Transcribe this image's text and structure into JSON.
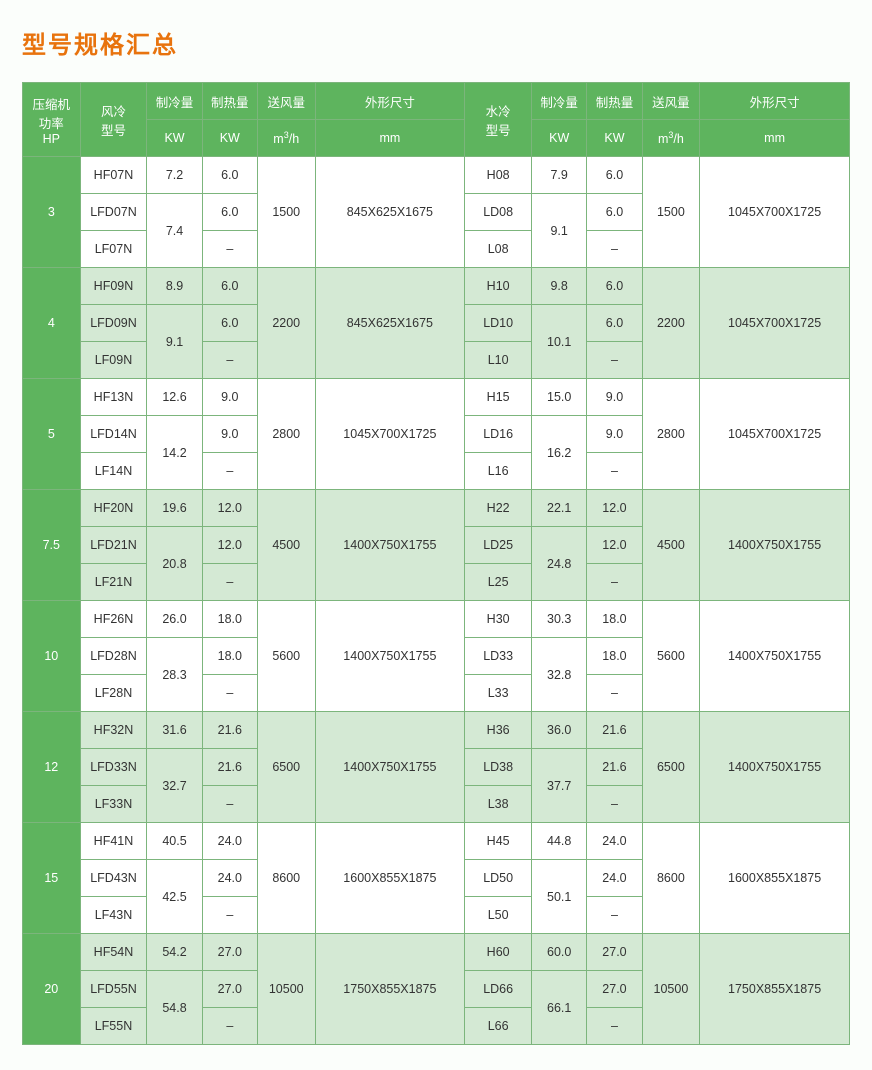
{
  "title": "型号规格汇总",
  "headers": {
    "hp_line1": "压缩机",
    "hp_line2": "功率",
    "hp_line3": "HP",
    "air_model_l1": "风冷",
    "air_model_l2": "型号",
    "water_model_l1": "水冷",
    "water_model_l2": "型号",
    "cooling": "制冷量",
    "heating": "制热量",
    "airflow": "送风量",
    "dims": "外形尺寸",
    "kw": "KW",
    "m3h_pre": "m",
    "m3h_sup": "3",
    "m3h_post": "/h",
    "mm": "mm"
  },
  "groups": [
    {
      "hp": "3",
      "shade": false,
      "air_models": [
        "HF07N",
        "LFD07N",
        "LF07N"
      ],
      "air_cool": [
        "7.2",
        "7.4"
      ],
      "air_heat": [
        "6.0",
        "6.0",
        "–"
      ],
      "air_flow": "1500",
      "air_dim": "845X625X1675",
      "water_models": [
        "H08",
        "LD08",
        "L08"
      ],
      "water_cool": [
        "7.9",
        "9.1"
      ],
      "water_heat": [
        "6.0",
        "6.0",
        "–"
      ],
      "water_flow": "1500",
      "water_dim": "1045X700X1725"
    },
    {
      "hp": "4",
      "shade": true,
      "air_models": [
        "HF09N",
        "LFD09N",
        "LF09N"
      ],
      "air_cool": [
        "8.9",
        "9.1"
      ],
      "air_heat": [
        "6.0",
        "6.0",
        "–"
      ],
      "air_flow": "2200",
      "air_dim": "845X625X1675",
      "water_models": [
        "H10",
        "LD10",
        "L10"
      ],
      "water_cool": [
        "9.8",
        "10.1"
      ],
      "water_heat": [
        "6.0",
        "6.0",
        "–"
      ],
      "water_flow": "2200",
      "water_dim": "1045X700X1725"
    },
    {
      "hp": "5",
      "shade": false,
      "air_models": [
        "HF13N",
        "LFD14N",
        "LF14N"
      ],
      "air_cool": [
        "12.6",
        "14.2"
      ],
      "air_heat": [
        "9.0",
        "9.0",
        "–"
      ],
      "air_flow": "2800",
      "air_dim": "1045X700X1725",
      "water_models": [
        "H15",
        "LD16",
        "L16"
      ],
      "water_cool": [
        "15.0",
        "16.2"
      ],
      "water_heat": [
        "9.0",
        "9.0",
        "–"
      ],
      "water_flow": "2800",
      "water_dim": "1045X700X1725"
    },
    {
      "hp": "7.5",
      "shade": true,
      "air_models": [
        "HF20N",
        "LFD21N",
        "LF21N"
      ],
      "air_cool": [
        "19.6",
        "20.8"
      ],
      "air_heat": [
        "12.0",
        "12.0",
        "–"
      ],
      "air_flow": "4500",
      "air_dim": "1400X750X1755",
      "water_models": [
        "H22",
        "LD25",
        "L25"
      ],
      "water_cool": [
        "22.1",
        "24.8"
      ],
      "water_heat": [
        "12.0",
        "12.0",
        "–"
      ],
      "water_flow": "4500",
      "water_dim": "1400X750X1755"
    },
    {
      "hp": "10",
      "shade": false,
      "air_models": [
        "HF26N",
        "LFD28N",
        "LF28N"
      ],
      "air_cool": [
        "26.0",
        "28.3"
      ],
      "air_heat": [
        "18.0",
        "18.0",
        "–"
      ],
      "air_flow": "5600",
      "air_dim": "1400X750X1755",
      "water_models": [
        "H30",
        "LD33",
        "L33"
      ],
      "water_cool": [
        "30.3",
        "32.8"
      ],
      "water_heat": [
        "18.0",
        "18.0",
        "–"
      ],
      "water_flow": "5600",
      "water_dim": "1400X750X1755"
    },
    {
      "hp": "12",
      "shade": true,
      "air_models": [
        "HF32N",
        "LFD33N",
        "LF33N"
      ],
      "air_cool": [
        "31.6",
        "32.7"
      ],
      "air_heat": [
        "21.6",
        "21.6",
        "–"
      ],
      "air_flow": "6500",
      "air_dim": "1400X750X1755",
      "water_models": [
        "H36",
        "LD38",
        "L38"
      ],
      "water_cool": [
        "36.0",
        "37.7"
      ],
      "water_heat": [
        "21.6",
        "21.6",
        "–"
      ],
      "water_flow": "6500",
      "water_dim": "1400X750X1755"
    },
    {
      "hp": "15",
      "shade": false,
      "air_models": [
        "HF41N",
        "LFD43N",
        "LF43N"
      ],
      "air_cool": [
        "40.5",
        "42.5"
      ],
      "air_heat": [
        "24.0",
        "24.0",
        "–"
      ],
      "air_flow": "8600",
      "air_dim": "1600X855X1875",
      "water_models": [
        "H45",
        "LD50",
        "L50"
      ],
      "water_cool": [
        "44.8",
        "50.1"
      ],
      "water_heat": [
        "24.0",
        "24.0",
        "–"
      ],
      "water_flow": "8600",
      "water_dim": "1600X855X1875"
    },
    {
      "hp": "20",
      "shade": true,
      "air_models": [
        "HF54N",
        "LFD55N",
        "LF55N"
      ],
      "air_cool": [
        "54.2",
        "54.8"
      ],
      "air_heat": [
        "27.0",
        "27.0",
        "–"
      ],
      "air_flow": "10500",
      "air_dim": "1750X855X1875",
      "water_models": [
        "H60",
        "LD66",
        "L66"
      ],
      "water_cool": [
        "60.0",
        "66.1"
      ],
      "water_heat": [
        "27.0",
        "27.0",
        "–"
      ],
      "water_flow": "10500",
      "water_dim": "1750X855X1875"
    }
  ],
  "style": {
    "title_color": "#e8730d",
    "header_bg": "#5eb45e",
    "border_color": "#7cb57c",
    "shade_bg": "#d4e9d4",
    "plain_bg": "#ffffff",
    "page_bg": "#fbfefb"
  }
}
